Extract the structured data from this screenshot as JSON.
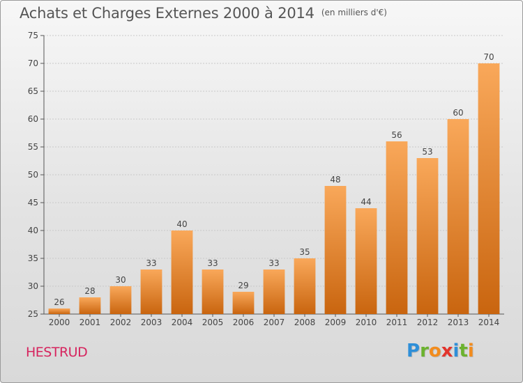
{
  "title": "Achats et Charges Externes 2000 à 2014",
  "unit": "(en milliers d'€)",
  "place": "HESTRUD",
  "brand": {
    "letters": [
      {
        "ch": "P",
        "color": "#2e8fd8"
      },
      {
        "ch": "r",
        "color": "#6bb22e"
      },
      {
        "ch": "o",
        "color": "#f28c1e"
      },
      {
        "ch": "x",
        "color": "#e2342c"
      },
      {
        "ch": "i",
        "color": "#2e8fd8"
      },
      {
        "ch": "t",
        "color": "#6bb22e"
      },
      {
        "ch": "i",
        "color": "#f28c1e"
      }
    ]
  },
  "chart_data": {
    "type": "bar",
    "categories": [
      "2000",
      "2001",
      "2002",
      "2003",
      "2004",
      "2005",
      "2006",
      "2007",
      "2008",
      "2009",
      "2010",
      "2011",
      "2012",
      "2013",
      "2014"
    ],
    "values": [
      26,
      28,
      30,
      33,
      40,
      33,
      29,
      33,
      35,
      48,
      44,
      56,
      53,
      60,
      70
    ],
    "ylim": [
      25,
      75
    ],
    "yticks": [
      25,
      30,
      35,
      40,
      45,
      50,
      55,
      60,
      65,
      70,
      75
    ],
    "grid": true,
    "colors": {
      "bar_light": "#f9a85a",
      "bar_dark": "#c9650f",
      "grid": "#c8c8c8",
      "axis": "#555555",
      "text": "#444444"
    }
  }
}
